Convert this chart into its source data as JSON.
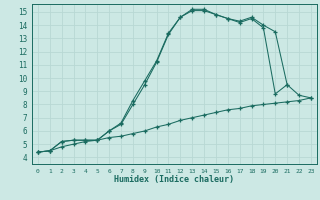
{
  "xlabel": "Humidex (Indice chaleur)",
  "bg_color": "#cce8e4",
  "grid_color": "#b8d8d4",
  "line_color": "#1a6b60",
  "xlim": [
    -0.5,
    23.5
  ],
  "ylim": [
    3.5,
    15.6
  ],
  "xticks": [
    0,
    1,
    2,
    3,
    4,
    5,
    6,
    7,
    8,
    9,
    10,
    11,
    12,
    13,
    14,
    15,
    16,
    17,
    18,
    19,
    20,
    21,
    22,
    23
  ],
  "yticks": [
    4,
    5,
    6,
    7,
    8,
    9,
    10,
    11,
    12,
    13,
    14,
    15
  ],
  "line1_x": [
    0,
    1,
    2,
    3,
    4,
    5,
    6,
    7,
    8,
    9,
    10,
    11,
    12,
    13,
    14,
    15,
    16,
    17,
    18,
    19,
    20,
    21,
    22,
    23
  ],
  "line1_y": [
    4.4,
    4.5,
    4.8,
    5.0,
    5.2,
    5.3,
    5.5,
    5.6,
    5.8,
    6.0,
    6.3,
    6.5,
    6.8,
    7.0,
    7.2,
    7.4,
    7.6,
    7.7,
    7.9,
    8.0,
    8.1,
    8.2,
    8.3,
    8.5
  ],
  "line2_x": [
    0,
    1,
    2,
    3,
    4,
    5,
    6,
    7,
    8,
    9,
    10,
    11,
    12,
    13,
    14,
    15,
    16,
    17,
    18,
    19,
    20,
    21
  ],
  "line2_y": [
    4.4,
    4.5,
    5.2,
    5.3,
    5.3,
    5.3,
    6.0,
    6.5,
    8.0,
    9.5,
    11.2,
    13.3,
    14.6,
    15.2,
    15.2,
    14.8,
    14.5,
    14.3,
    14.6,
    14.0,
    13.5,
    9.5
  ],
  "line3_x": [
    0,
    1,
    2,
    3,
    4,
    5,
    6,
    7,
    8,
    9,
    10,
    11,
    12,
    13,
    14,
    15,
    16,
    17,
    18,
    19,
    20,
    21,
    22,
    23
  ],
  "line3_y": [
    4.4,
    4.5,
    5.2,
    5.3,
    5.3,
    5.3,
    6.0,
    6.6,
    8.3,
    9.8,
    11.3,
    13.4,
    14.6,
    15.1,
    15.1,
    14.8,
    14.5,
    14.2,
    14.5,
    13.8,
    8.8,
    9.5,
    8.7,
    8.5
  ]
}
